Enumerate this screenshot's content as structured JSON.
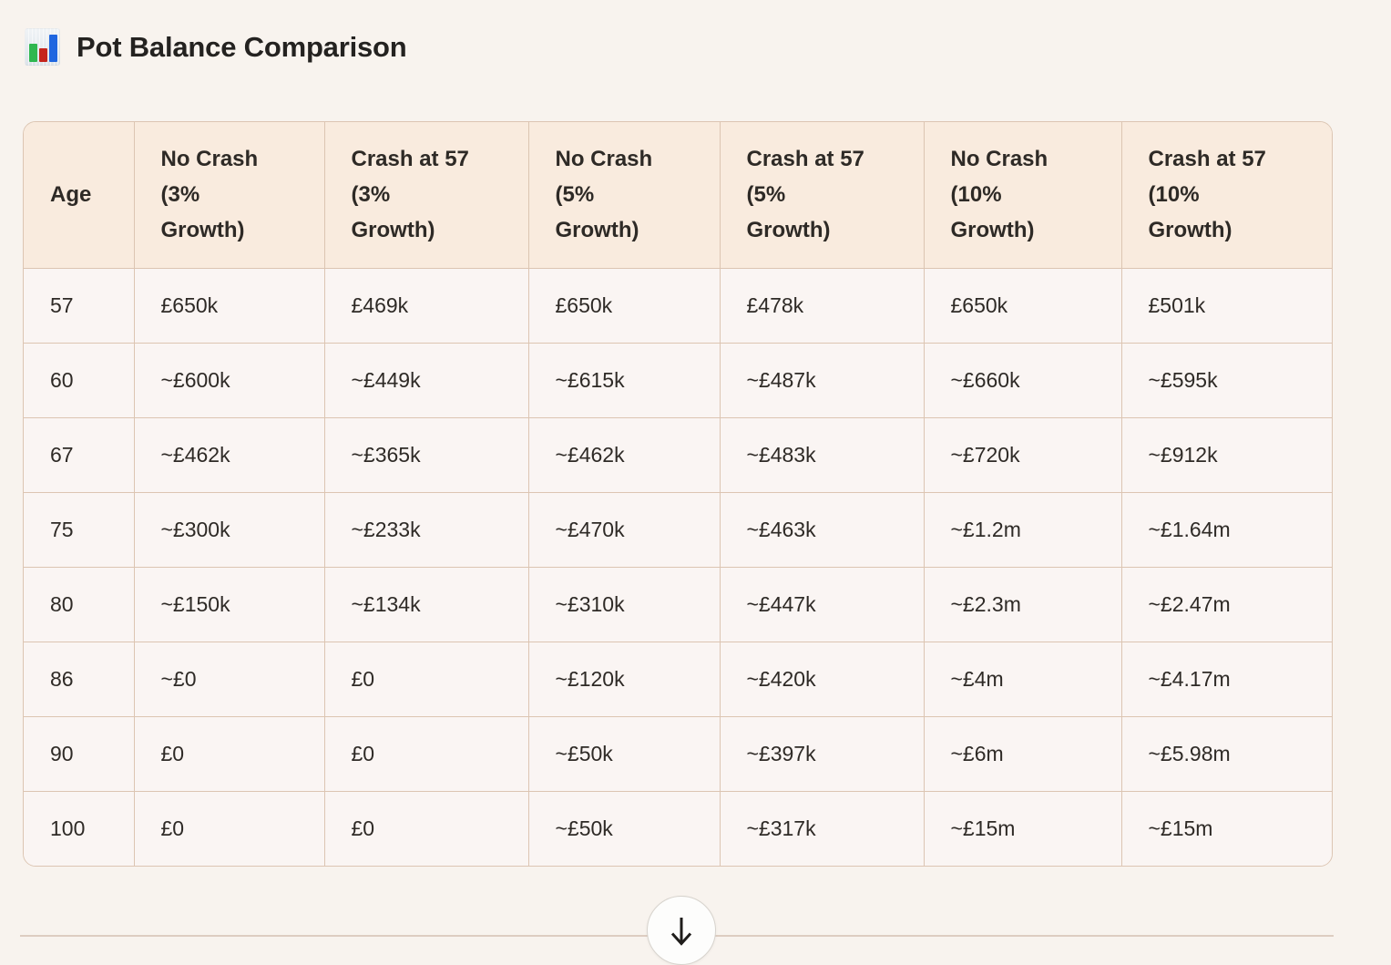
{
  "page": {
    "title": "Pot Balance Comparison",
    "title_icon": "bar-chart-emoji"
  },
  "colors": {
    "page_bg": "#f8f3ee",
    "table_border": "#dcc5b2",
    "header_bg": "#f9ebde",
    "row_bg": "#faf5f3",
    "text": "#2e2a26",
    "divider": "#ddcdc1"
  },
  "table": {
    "columns": [
      {
        "label": "Age",
        "lines": [
          "Age"
        ]
      },
      {
        "label": "No Crash (3% Growth)",
        "lines": [
          "No Crash",
          "(3%",
          "Growth)"
        ]
      },
      {
        "label": "Crash at 57 (3% Growth)",
        "lines": [
          "Crash at 57",
          "(3%",
          "Growth)"
        ]
      },
      {
        "label": "No Crash (5% Growth)",
        "lines": [
          "No Crash",
          "(5%",
          "Growth)"
        ]
      },
      {
        "label": "Crash at 57 (5% Growth)",
        "lines": [
          "Crash at 57",
          "(5%",
          "Growth)"
        ]
      },
      {
        "label": "No Crash (10% Growth)",
        "lines": [
          "No Crash",
          "(10%",
          "Growth)"
        ]
      },
      {
        "label": "Crash at 57 (10% Growth)",
        "lines": [
          "Crash at 57",
          "(10%",
          "Growth)"
        ]
      }
    ],
    "rows": [
      [
        "57",
        "£650k",
        "£469k",
        "£650k",
        "£478k",
        "£650k",
        "£501k"
      ],
      [
        "60",
        "~£600k",
        "~£449k",
        "~£615k",
        "~£487k",
        "~£660k",
        "~£595k"
      ],
      [
        "67",
        "~£462k",
        "~£365k",
        "~£462k",
        "~£483k",
        "~£720k",
        "~£912k"
      ],
      [
        "75",
        "~£300k",
        "~£233k",
        "~£470k",
        "~£463k",
        "~£1.2m",
        "~£1.64m"
      ],
      [
        "80",
        "~£150k",
        "~£134k",
        "~£310k",
        "~£447k",
        "~£2.3m",
        "~£2.47m"
      ],
      [
        "86",
        "~£0",
        "£0",
        "~£120k",
        "~£420k",
        "~£4m",
        "~£4.17m"
      ],
      [
        "90",
        "£0",
        "£0",
        "~£50k",
        "~£397k",
        "~£6m",
        "~£5.98m"
      ],
      [
        "100",
        "£0",
        "£0",
        "~£50k",
        "~£317k",
        "~£15m",
        "~£15m"
      ]
    ]
  },
  "scroll_button": {
    "icon": "arrow-down-icon"
  }
}
